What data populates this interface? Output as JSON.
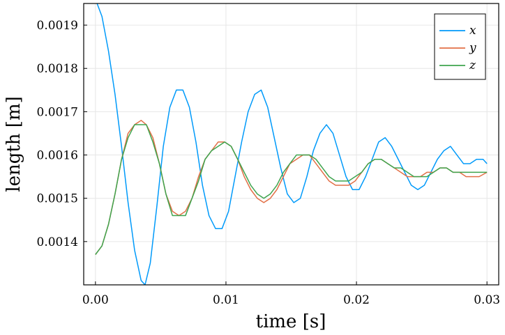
{
  "chart_data": {
    "type": "line",
    "title": "",
    "xlabel": "time [s]",
    "ylabel": "length [m]",
    "xlim": [
      -0.0009,
      0.0309
    ],
    "ylim": [
      0.0013,
      0.00195
    ],
    "x_ticks": [
      0.0,
      0.01,
      0.02,
      0.03
    ],
    "x_tick_labels": [
      "0.00",
      "0.01",
      "0.02",
      "0.03"
    ],
    "y_ticks": [
      0.0014,
      0.0015,
      0.0016,
      0.0017,
      0.0018,
      0.0019
    ],
    "y_tick_labels": [
      "0.0014",
      "0.0015",
      "0.0016",
      "0.0017",
      "0.0018",
      "0.0019"
    ],
    "grid": true,
    "legend_position": "top-right",
    "series": [
      {
        "name": "x",
        "color": "#009AFA",
        "x": [
          0.0,
          0.0005,
          0.001,
          0.0015,
          0.002,
          0.0025,
          0.003,
          0.0035,
          0.0038,
          0.0042,
          0.0047,
          0.0052,
          0.0057,
          0.0062,
          0.0067,
          0.0072,
          0.0077,
          0.0082,
          0.0087,
          0.0092,
          0.0097,
          0.0102,
          0.0107,
          0.0112,
          0.0117,
          0.0122,
          0.0127,
          0.0132,
          0.0137,
          0.0142,
          0.0147,
          0.0152,
          0.0157,
          0.0162,
          0.0167,
          0.0172,
          0.0177,
          0.0182,
          0.0187,
          0.0192,
          0.0197,
          0.0202,
          0.0207,
          0.0212,
          0.0217,
          0.0222,
          0.0227,
          0.0232,
          0.0237,
          0.0242,
          0.0247,
          0.0252,
          0.0257,
          0.0262,
          0.0267,
          0.0272,
          0.0277,
          0.0282,
          0.0287,
          0.0292,
          0.0297,
          0.03
        ],
        "y": [
          0.00196,
          0.00192,
          0.00184,
          0.00174,
          0.00162,
          0.00149,
          0.00138,
          0.00131,
          0.0013,
          0.00135,
          0.00148,
          0.00162,
          0.00171,
          0.00175,
          0.00175,
          0.00171,
          0.00163,
          0.00153,
          0.00146,
          0.00143,
          0.00143,
          0.00147,
          0.00155,
          0.00163,
          0.0017,
          0.00174,
          0.00175,
          0.00171,
          0.00164,
          0.00157,
          0.00151,
          0.00149,
          0.0015,
          0.00155,
          0.00161,
          0.00165,
          0.00167,
          0.00165,
          0.0016,
          0.00155,
          0.00152,
          0.00152,
          0.00155,
          0.00159,
          0.00163,
          0.00164,
          0.00162,
          0.00159,
          0.00156,
          0.00153,
          0.00152,
          0.00153,
          0.00156,
          0.00159,
          0.00161,
          0.00162,
          0.0016,
          0.00158,
          0.00158,
          0.00159,
          0.00159,
          0.00158
        ]
      },
      {
        "name": "y",
        "color": "#E26F46",
        "x": [
          0.0,
          0.0005,
          0.001,
          0.0015,
          0.002,
          0.0025,
          0.003,
          0.0035,
          0.0039,
          0.0044,
          0.0049,
          0.0054,
          0.0059,
          0.0064,
          0.0069,
          0.0074,
          0.0079,
          0.0084,
          0.0089,
          0.0094,
          0.0099,
          0.0104,
          0.0109,
          0.0114,
          0.0119,
          0.0124,
          0.0129,
          0.0134,
          0.0139,
          0.0144,
          0.0149,
          0.0154,
          0.0159,
          0.0164,
          0.0169,
          0.0174,
          0.0179,
          0.0184,
          0.0189,
          0.0194,
          0.0199,
          0.0204,
          0.0209,
          0.0214,
          0.0219,
          0.0224,
          0.0229,
          0.0234,
          0.0239,
          0.0244,
          0.0249,
          0.0254,
          0.0259,
          0.0264,
          0.0269,
          0.0274,
          0.0279,
          0.0284,
          0.0289,
          0.0294,
          0.03
        ],
        "y": [
          0.00137,
          0.00139,
          0.00144,
          0.00151,
          0.00159,
          0.00165,
          0.00167,
          0.00168,
          0.00167,
          0.00164,
          0.00158,
          0.00151,
          0.00147,
          0.00146,
          0.00147,
          0.0015,
          0.00155,
          0.00159,
          0.00161,
          0.00163,
          0.00163,
          0.00162,
          0.00159,
          0.00155,
          0.00152,
          0.0015,
          0.00149,
          0.0015,
          0.00152,
          0.00155,
          0.00158,
          0.00159,
          0.0016,
          0.0016,
          0.00158,
          0.00156,
          0.00154,
          0.00153,
          0.00153,
          0.00153,
          0.00154,
          0.00156,
          0.00158,
          0.00159,
          0.00159,
          0.00158,
          0.00157,
          0.00156,
          0.00155,
          0.00155,
          0.00155,
          0.00156,
          0.00156,
          0.00157,
          0.00157,
          0.00156,
          0.00156,
          0.00155,
          0.00155,
          0.00155,
          0.00156
        ]
      },
      {
        "name": "z",
        "color": "#3EA44E",
        "x": [
          0.0,
          0.0005,
          0.001,
          0.0015,
          0.002,
          0.0025,
          0.003,
          0.0035,
          0.0039,
          0.0044,
          0.0049,
          0.0054,
          0.0059,
          0.0064,
          0.0069,
          0.0074,
          0.0079,
          0.0084,
          0.0089,
          0.0094,
          0.0099,
          0.0104,
          0.0109,
          0.0114,
          0.0119,
          0.0124,
          0.0129,
          0.0134,
          0.0139,
          0.0144,
          0.0149,
          0.0154,
          0.0159,
          0.0164,
          0.0169,
          0.0174,
          0.0179,
          0.0184,
          0.0189,
          0.0194,
          0.0199,
          0.0204,
          0.0209,
          0.0214,
          0.0219,
          0.0224,
          0.0229,
          0.0234,
          0.0239,
          0.0244,
          0.0249,
          0.0254,
          0.0259,
          0.0264,
          0.0269,
          0.0274,
          0.0279,
          0.0284,
          0.0289,
          0.0294,
          0.03
        ],
        "y": [
          0.00137,
          0.00139,
          0.00144,
          0.00151,
          0.00159,
          0.00164,
          0.00167,
          0.00167,
          0.00167,
          0.00163,
          0.00158,
          0.00151,
          0.00146,
          0.00146,
          0.00146,
          0.0015,
          0.00154,
          0.00159,
          0.00161,
          0.00162,
          0.00163,
          0.00162,
          0.00159,
          0.00156,
          0.00153,
          0.00151,
          0.0015,
          0.00151,
          0.00153,
          0.00156,
          0.00158,
          0.0016,
          0.0016,
          0.0016,
          0.00159,
          0.00157,
          0.00155,
          0.00154,
          0.00154,
          0.00154,
          0.00155,
          0.00156,
          0.00158,
          0.00159,
          0.00159,
          0.00158,
          0.00157,
          0.00157,
          0.00156,
          0.00155,
          0.00155,
          0.00155,
          0.00156,
          0.00157,
          0.00157,
          0.00156,
          0.00156,
          0.00156,
          0.00156,
          0.00156,
          0.00156
        ]
      }
    ]
  }
}
